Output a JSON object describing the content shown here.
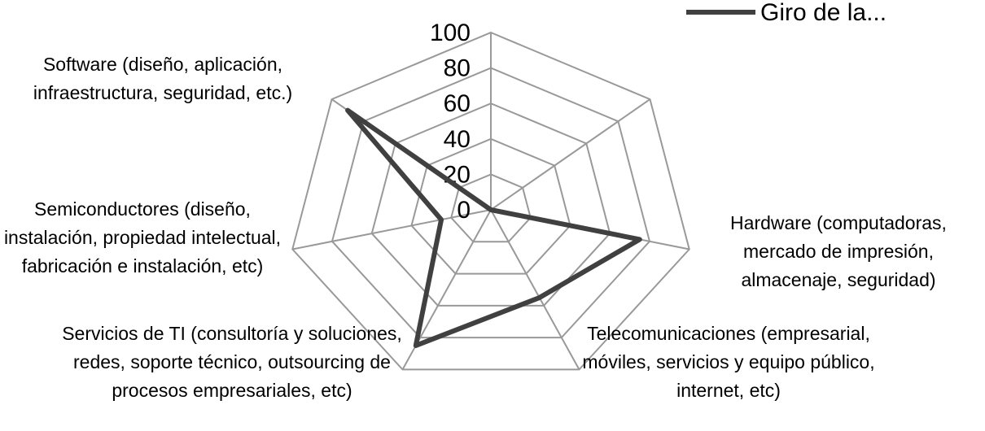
{
  "chart_data": {
    "type": "radar",
    "categories": [
      null,
      null,
      "Hardware (computadoras, mercado de impresión, almacenaje, seguridad)",
      "Telecomunicaciones (empresarial, móviles, servicios y equipo público, internet, etc)",
      "Servicios de TI (consultoría y soluciones, redes, soporte técnico, outsourcing de procesos empresariales, etc)",
      "Semiconductores (diseño, instalación, propiedad intelectual, fabricación e instalación, etc)",
      "Software (diseño, aplicación, infraestructura, seguridad, etc.)"
    ],
    "series": [
      {
        "name": "Giro de la...",
        "color": "#404040",
        "values": [
          0,
          0,
          75,
          55,
          85,
          25,
          90
        ]
      }
    ],
    "ylim": [
      0,
      100
    ],
    "yticks": [
      0,
      20,
      40,
      60,
      80,
      100
    ],
    "grid": true,
    "legend": "top-right"
  }
}
